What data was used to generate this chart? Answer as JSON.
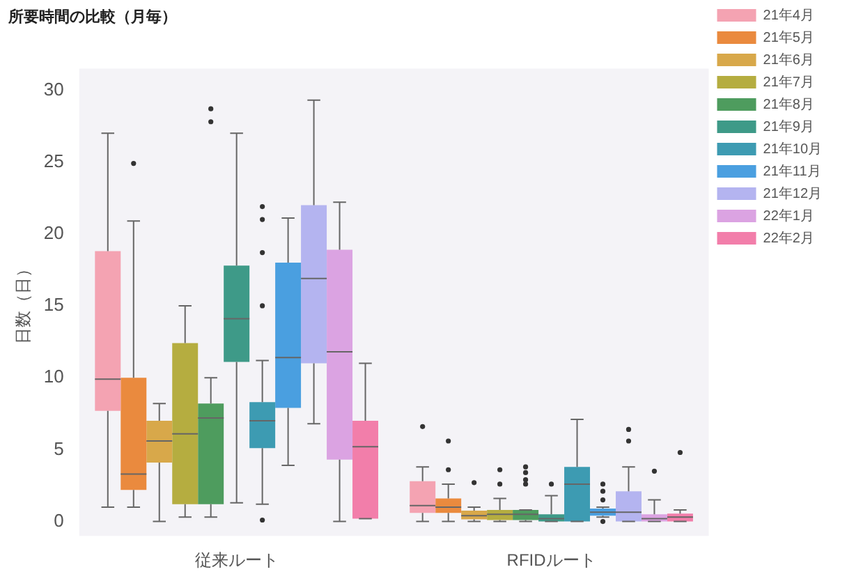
{
  "chart_data": {
    "type": "box",
    "title": "所要時間の比較（月毎）",
    "ylabel": "日数（日）",
    "categories": [
      "従来ルート",
      "RFIDルート"
    ],
    "ylim": [
      -1,
      31.5
    ],
    "yticks": [
      0,
      5,
      10,
      15,
      20,
      25,
      30
    ],
    "grid": false,
    "legend": "top right",
    "series": [
      {
        "name": "21年4月",
        "color": "#f4a3b2",
        "boxes": [
          {
            "low": 1.0,
            "q1": 7.7,
            "median": 9.9,
            "q3": 18.8,
            "high": 27.0
          },
          {
            "low": 0,
            "q1": 0.6,
            "median": 1.1,
            "q3": 2.8,
            "high": 3.8,
            "outliers": [
              6.6
            ]
          }
        ]
      },
      {
        "name": "21年5月",
        "color": "#ea8a3e",
        "boxes": [
          {
            "low": 1.0,
            "q1": 2.2,
            "median": 3.3,
            "q3": 10.0,
            "high": 20.9,
            "outliers": [
              24.9
            ]
          },
          {
            "low": 0,
            "q1": 0.6,
            "median": 1.0,
            "q3": 1.6,
            "high": 2.6,
            "outliers": [
              3.6,
              5.6
            ]
          }
        ]
      },
      {
        "name": "21年6月",
        "color": "#d8a84a",
        "boxes": [
          {
            "low": 0,
            "q1": 4.1,
            "median": 5.6,
            "q3": 7.0,
            "high": 8.2
          },
          {
            "low": 0,
            "q1": 0.15,
            "median": 0.4,
            "q3": 0.75,
            "high": 1.0,
            "outliers": [
              2.7
            ]
          }
        ]
      },
      {
        "name": "21年7月",
        "color": "#b5ad40",
        "boxes": [
          {
            "low": 0.3,
            "q1": 1.2,
            "median": 6.1,
            "q3": 12.4,
            "high": 15.0
          },
          {
            "low": 0,
            "q1": 0.1,
            "median": 0.5,
            "q3": 0.8,
            "high": 1.6,
            "outliers": [
              2.6,
              3.6
            ]
          }
        ]
      },
      {
        "name": "21年8月",
        "color": "#4e9c5e",
        "boxes": [
          {
            "low": 0.3,
            "q1": 1.2,
            "median": 7.2,
            "q3": 8.2,
            "high": 10.0,
            "outliers": [
              27.8,
              28.7
            ]
          },
          {
            "low": 0,
            "q1": 0.1,
            "median": 0.5,
            "q3": 0.8,
            "high": 0.8,
            "outliers": [
              2.6,
              2.9,
              3.4,
              3.8
            ]
          }
        ]
      },
      {
        "name": "21年9月",
        "color": "#3e9a88",
        "boxes": [
          {
            "low": 1.3,
            "q1": 11.1,
            "median": 14.1,
            "q3": 17.8,
            "high": 27.0
          },
          {
            "low": 0,
            "q1": 0,
            "median": 0.2,
            "q3": 0.5,
            "high": 1.8,
            "outliers": [
              2.6
            ]
          }
        ]
      },
      {
        "name": "21年10月",
        "color": "#3d9bb2",
        "boxes": [
          {
            "low": 1.2,
            "q1": 5.1,
            "median": 7.0,
            "q3": 8.3,
            "high": 11.2,
            "outliers": [
              0.1,
              15.0,
              18.7,
              21.0,
              21.9
            ]
          },
          {
            "low": 0,
            "q1": 0,
            "median": 2.6,
            "q3": 3.8,
            "high": 7.1
          }
        ]
      },
      {
        "name": "21年11月",
        "color": "#4a9fe0",
        "boxes": [
          {
            "low": 3.9,
            "q1": 7.9,
            "median": 11.4,
            "q3": 18.0,
            "high": 21.1
          },
          {
            "low": 0.3,
            "q1": 0.4,
            "median": 0.65,
            "q3": 0.9,
            "high": 1.0,
            "outliers": [
              0,
              1.5,
              2.1,
              2.6
            ]
          }
        ]
      },
      {
        "name": "21年12月",
        "color": "#b4b4f0",
        "boxes": [
          {
            "low": 6.8,
            "q1": 11.0,
            "median": 16.9,
            "q3": 22.0,
            "high": 29.3
          },
          {
            "low": 0,
            "q1": 0,
            "median": 0.65,
            "q3": 2.1,
            "high": 3.8,
            "outliers": [
              5.6,
              6.4
            ]
          }
        ]
      },
      {
        "name": "22年1月",
        "color": "#dba3e2",
        "boxes": [
          {
            "low": 0,
            "q1": 4.3,
            "median": 11.8,
            "q3": 18.9,
            "high": 22.2
          },
          {
            "low": 0,
            "q1": 0,
            "median": 0.2,
            "q3": 0.5,
            "high": 1.5,
            "outliers": [
              3.5
            ]
          }
        ]
      },
      {
        "name": "22年2月",
        "color": "#f27eaa",
        "boxes": [
          {
            "low": 0.2,
            "q1": 0.2,
            "median": 5.2,
            "q3": 7.0,
            "high": 11.0
          },
          {
            "low": 0,
            "q1": 0,
            "median": 0.3,
            "q3": 0.55,
            "high": 0.8,
            "outliers": [
              4.8
            ]
          }
        ]
      }
    ]
  }
}
